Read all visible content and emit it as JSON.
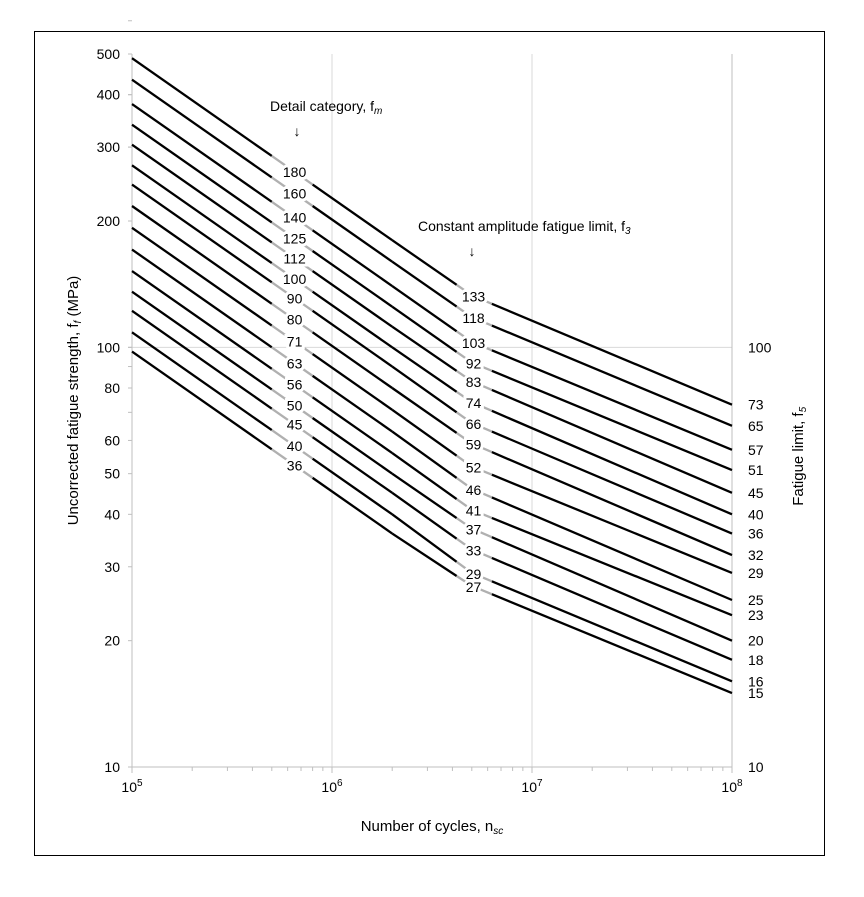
{
  "chart_data": {
    "type": "line",
    "x_scale": "log",
    "y_scale": "log",
    "xlim": [
      100000,
      100000000
    ],
    "ylim": [
      10,
      500
    ],
    "grid": true,
    "xlabel": "Number of cycles, n",
    "xlabel_sub": "sc",
    "ylabel": "Uncorrected fatigue strength, f",
    "ylabel_sub": "f",
    "ylabel_unit": " (MPa)",
    "y2label": "Fatigue limit, f",
    "y2label_sub": "5",
    "x_ticks": [
      {
        "value": 100000,
        "base": "10",
        "exp": "5"
      },
      {
        "value": 1000000,
        "base": "10",
        "exp": "6"
      },
      {
        "value": 10000000,
        "base": "10",
        "exp": "7"
      },
      {
        "value": 100000000,
        "base": "10",
        "exp": "8"
      }
    ],
    "y_ticks": [
      "10",
      "20",
      "30",
      "40",
      "50",
      "60",
      "80",
      "100",
      "200",
      "300",
      "400",
      "500"
    ],
    "y2_ticks": [
      "10",
      "100"
    ],
    "annotations": {
      "detail_category": {
        "text": "Detail category, f",
        "sub": "m",
        "arrow": "↓"
      },
      "cafl": {
        "text": "Constant amplitude fatigue limit, f",
        "sub": "3",
        "arrow": "↓"
      }
    },
    "curve_breaks": {
      "n_detail": 2000000,
      "n_cafl": 5000000
    },
    "series": [
      {
        "fm": 180,
        "f3": 133,
        "f5": 73
      },
      {
        "fm": 160,
        "f3": 118,
        "f5": 65
      },
      {
        "fm": 140,
        "f3": 103,
        "f5": 57
      },
      {
        "fm": 125,
        "f3": 92,
        "f5": 51
      },
      {
        "fm": 112,
        "f3": 83,
        "f5": 45
      },
      {
        "fm": 100,
        "f3": 74,
        "f5": 40
      },
      {
        "fm": 90,
        "f3": 66,
        "f5": 36
      },
      {
        "fm": 80,
        "f3": 59,
        "f5": 32
      },
      {
        "fm": 71,
        "f3": 52,
        "f5": 29
      },
      {
        "fm": 63,
        "f3": 46,
        "f5": 25
      },
      {
        "fm": 56,
        "f3": 41,
        "f5": 23
      },
      {
        "fm": 50,
        "f3": 37,
        "f5": 20
      },
      {
        "fm": 45,
        "f3": 33,
        "f5": 18
      },
      {
        "fm": 40,
        "f3": 29,
        "f5": 16
      },
      {
        "fm": 36,
        "f3": 27,
        "f5": 15
      }
    ]
  }
}
